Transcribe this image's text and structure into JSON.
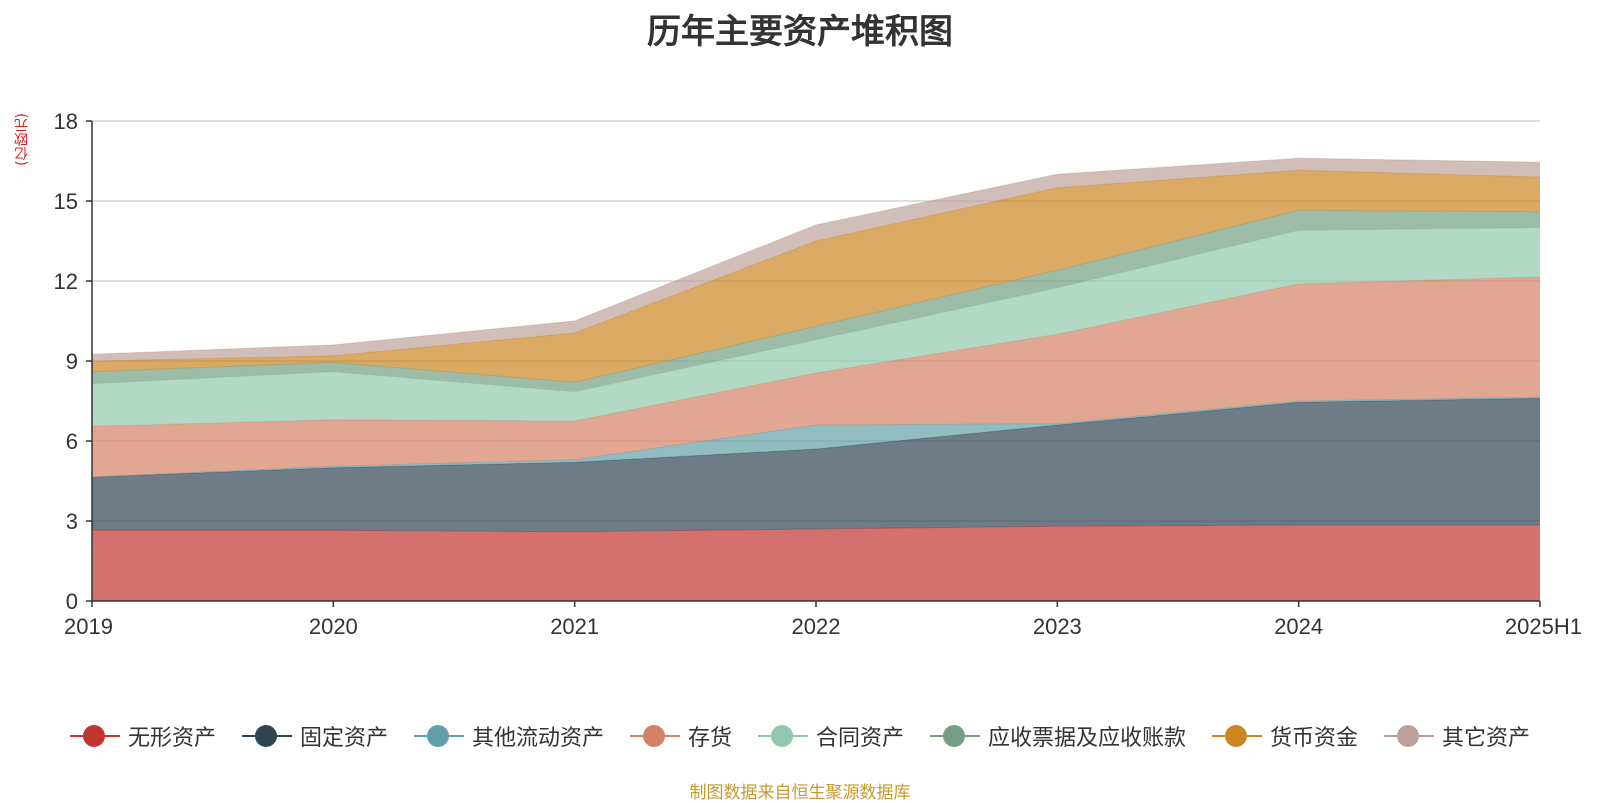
{
  "chart_data": {
    "type": "area",
    "stacked": true,
    "title": "历年主要资产堆积图",
    "unit_label": "(亿欧元)",
    "x": [
      "2019",
      "2020",
      "2021",
      "2022",
      "2023",
      "2024",
      "2025H1"
    ],
    "ylim": [
      0,
      18
    ],
    "yticks": [
      0,
      3,
      6,
      9,
      12,
      15,
      18
    ],
    "grid": true,
    "legend_position": "bottom",
    "series": [
      {
        "name": "无形资产",
        "color": "#c23531",
        "values": [
          2.65,
          2.65,
          2.6,
          2.7,
          2.8,
          2.85,
          2.85
        ]
      },
      {
        "name": "固定资产",
        "color": "#2f4554",
        "values": [
          2.0,
          2.35,
          2.6,
          3.0,
          3.8,
          4.6,
          4.75
        ]
      },
      {
        "name": "其他流动资产",
        "color": "#61a0a8",
        "values": [
          0.0,
          0.05,
          0.1,
          0.9,
          0.05,
          0.05,
          0.05
        ]
      },
      {
        "name": "存货",
        "color": "#d48265",
        "values": [
          1.9,
          1.75,
          1.45,
          1.95,
          3.35,
          4.4,
          4.5
        ]
      },
      {
        "name": "合同资产",
        "color": "#91c7ae",
        "values": [
          1.6,
          1.8,
          1.1,
          1.25,
          1.75,
          2.0,
          1.85
        ]
      },
      {
        "name": "应收票据及应收账款",
        "color": "#749f83",
        "values": [
          0.45,
          0.35,
          0.35,
          0.5,
          0.65,
          0.75,
          0.6
        ]
      },
      {
        "name": "货币资金",
        "color": "#ca8622",
        "values": [
          0.4,
          0.25,
          1.85,
          3.2,
          3.1,
          1.5,
          1.3
        ]
      },
      {
        "name": "其它资产",
        "color": "#bda29a",
        "values": [
          0.25,
          0.4,
          0.45,
          0.6,
          0.5,
          0.45,
          0.55
        ]
      }
    ]
  },
  "footer": {
    "source": "制图数据来自恒生聚源数据库"
  }
}
